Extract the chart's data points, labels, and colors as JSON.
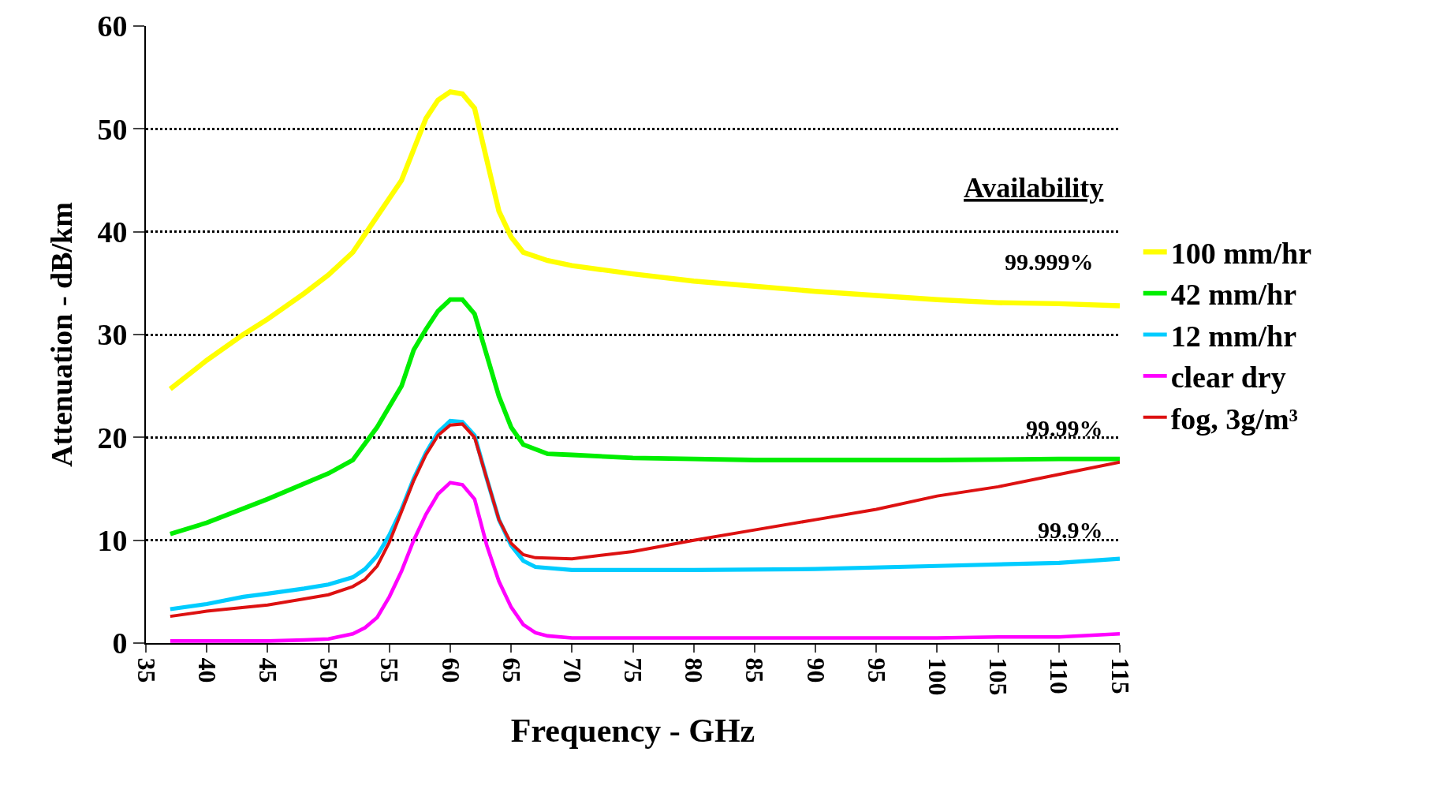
{
  "chart_data": {
    "type": "line",
    "xlabel": "Frequency - GHz",
    "ylabel": "Attenuation - dB/km",
    "xlim": [
      35,
      115
    ],
    "xticks": [
      35,
      40,
      45,
      50,
      55,
      60,
      65,
      70,
      75,
      80,
      85,
      90,
      95,
      100,
      105,
      110,
      115
    ],
    "ylim": [
      0,
      60
    ],
    "yticks": [
      0,
      10,
      20,
      30,
      40,
      50,
      60
    ],
    "grid": "y",
    "legend": "right",
    "marker": "none",
    "line_style": "solid",
    "annotations": [
      "Availability",
      "99.999%",
      "99.99%",
      "99.9%"
    ],
    "series": [
      {
        "name": "100 mm/hr",
        "color": "#ffff00",
        "x": [
          37,
          40,
          43,
          45,
          48,
          50,
          52,
          54,
          56,
          57,
          58,
          59,
          60,
          61,
          62,
          63,
          64,
          65,
          66,
          68,
          70,
          75,
          80,
          85,
          90,
          95,
          100,
          105,
          110,
          115
        ],
        "values": [
          24.7,
          27.5,
          30,
          31.5,
          34,
          35.8,
          38,
          41.5,
          45,
          48,
          51,
          52.8,
          53.6,
          53.4,
          52,
          47,
          42,
          39.5,
          38,
          37.2,
          36.7,
          35.9,
          35.2,
          34.7,
          34.2,
          33.8,
          33.4,
          33.1,
          33,
          32.8
        ]
      },
      {
        "name": "42 mm/hr",
        "color": "#00ee00",
        "x": [
          37,
          40,
          45,
          50,
          52,
          54,
          56,
          57,
          58,
          59,
          60,
          61,
          62,
          63,
          64,
          65,
          66,
          68,
          70,
          75,
          80,
          85,
          90,
          100,
          110,
          115
        ],
        "values": [
          10.6,
          11.7,
          14,
          16.5,
          17.8,
          21,
          25,
          28.5,
          30.5,
          32.3,
          33.4,
          33.4,
          32,
          28,
          24,
          21,
          19.3,
          18.4,
          18.3,
          18,
          17.9,
          17.8,
          17.8,
          17.8,
          17.9,
          17.9
        ]
      },
      {
        "name": "12 mm/hr",
        "color": "#00ccff",
        "x": [
          37,
          40,
          43,
          45,
          48,
          50,
          52,
          53,
          54,
          55,
          56,
          57,
          58,
          59,
          60,
          61,
          62,
          63,
          64,
          65,
          66,
          67,
          70,
          80,
          90,
          100,
          110,
          115
        ],
        "values": [
          3.3,
          3.8,
          4.5,
          4.8,
          5.3,
          5.7,
          6.4,
          7.2,
          8.5,
          10.5,
          13,
          16,
          18.5,
          20.5,
          21.6,
          21.5,
          20.2,
          16,
          12,
          9.5,
          8,
          7.4,
          7.1,
          7.1,
          7.2,
          7.5,
          7.8,
          8.2
        ]
      },
      {
        "name": "clear dry",
        "color": "#ff00ff",
        "x": [
          37,
          45,
          48,
          50,
          52,
          53,
          54,
          55,
          56,
          57,
          58,
          59,
          60,
          61,
          62,
          63,
          64,
          65,
          66,
          67,
          68,
          70,
          80,
          90,
          100,
          105,
          110,
          115
        ],
        "values": [
          0.2,
          0.2,
          0.3,
          0.4,
          0.9,
          1.5,
          2.5,
          4.5,
          7,
          10,
          12.5,
          14.5,
          15.6,
          15.4,
          14,
          9.5,
          6,
          3.5,
          1.8,
          1,
          0.7,
          0.5,
          0.5,
          0.5,
          0.5,
          0.6,
          0.6,
          0.9
        ]
      },
      {
        "name": "fog, 3g/m³",
        "color": "#dd1111",
        "x": [
          37,
          40,
          45,
          48,
          50,
          52,
          53,
          54,
          55,
          56,
          57,
          58,
          59,
          60,
          61,
          62,
          63,
          64,
          65,
          66,
          67,
          70,
          75,
          80,
          85,
          90,
          95,
          100,
          105,
          110,
          115
        ],
        "values": [
          2.6,
          3.1,
          3.7,
          4.3,
          4.7,
          5.5,
          6.2,
          7.5,
          9.8,
          12.8,
          15.8,
          18.3,
          20.2,
          21.2,
          21.3,
          20,
          16,
          12,
          9.7,
          8.6,
          8.3,
          8.2,
          8.9,
          10,
          11,
          12,
          13,
          14.3,
          15.2,
          16.4,
          17.6
        ]
      }
    ]
  }
}
